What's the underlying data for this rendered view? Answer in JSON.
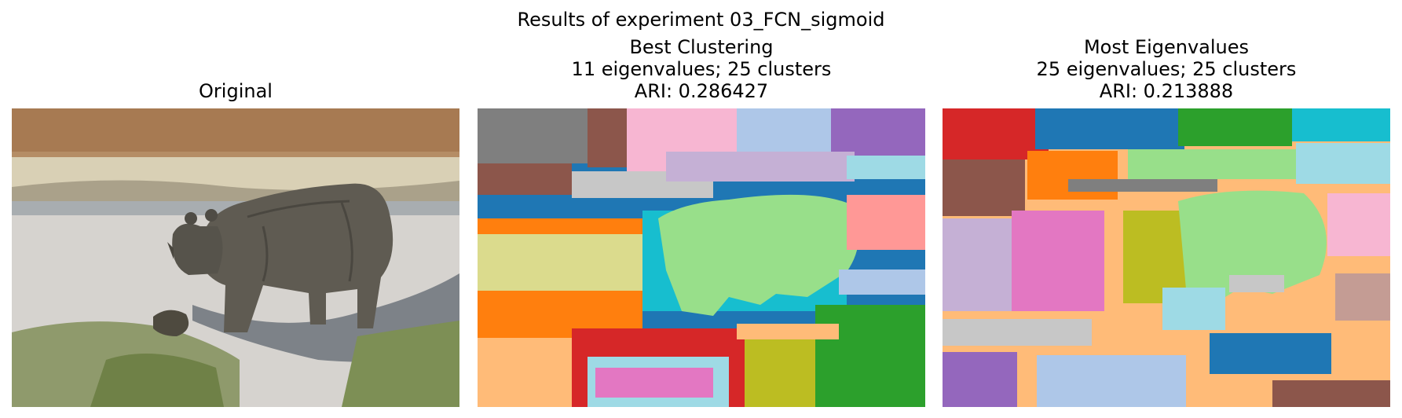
{
  "figure": {
    "title": "Results of experiment 03_FCN_sigmoid"
  },
  "panels": [
    {
      "title_lines": [
        "Original"
      ]
    },
    {
      "title_lines": [
        "Best Clustering",
        "11 eigenvalues; 25 clusters",
        "ARI: 0.286427"
      ]
    },
    {
      "title_lines": [
        "Most Eigenvalues",
        "25 eigenvalues; 25 clusters",
        "ARI: 0.213888"
      ]
    }
  ],
  "colors": {
    "tab_red": "#d62728",
    "tab_blue": "#1f77b4",
    "tab_light_blue": "#aec7e8",
    "tab_orange": "#ff7f0e",
    "tab_light_orange": "#ffbb78",
    "tab_green": "#2ca02c",
    "tab_light_green": "#98df8a",
    "tab_pink": "#e377c2",
    "tab_light_pink": "#f7b6d2",
    "tab_purple": "#9467bd",
    "tab_light_purple": "#c5b0d5",
    "tab_brown": "#8c564b",
    "tab_light_brown": "#c49c94",
    "tab_gray": "#7f7f7f",
    "tab_light_gray": "#c7c7c7",
    "tab_olive": "#bcbd22",
    "tab_light_olive": "#dbdb8d",
    "tab_cyan": "#17becf",
    "tab_light_cyan": "#9edae5",
    "tab_salmon": "#ff9896"
  }
}
